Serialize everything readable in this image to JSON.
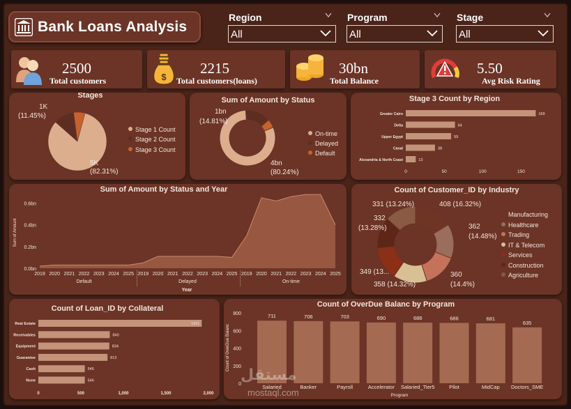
{
  "header": {
    "title": "Bank Loans Analysis"
  },
  "slicers": [
    {
      "label": "Region",
      "value": "All"
    },
    {
      "label": "Program",
      "value": "All"
    },
    {
      "label": "Stage",
      "value": "All"
    }
  ],
  "kpis": [
    {
      "value": "2500",
      "label": "Total customers",
      "icon": "people-icon"
    },
    {
      "value": "2215",
      "label": "Total customers(loans)",
      "icon": "money-bag-icon"
    },
    {
      "value": "30bn",
      "label": "Total Balance",
      "icon": "coins-icon"
    },
    {
      "value": "5.50",
      "label": "Avg Risk Rating",
      "icon": "warning-icon"
    }
  ],
  "stages": {
    "title": "Stages",
    "legend": [
      "Stage 1 Count",
      "Stage 2 Count",
      "Stage 3 Count"
    ],
    "big_label_1": "5K",
    "big_label_2": "(82.31%)",
    "small_label_1": "1K",
    "small_label_2": "(11.45%)"
  },
  "status": {
    "title": "Sum of Amount by Status",
    "legend": [
      "On-time",
      "Delayed",
      "Default"
    ],
    "big_label_1": "4bn",
    "big_label_2": "(80.24%)",
    "small_label_1": "1bn",
    "small_label_2": "(14.81%)"
  },
  "region": {
    "title": "Stage 3 Count by Region",
    "ticks": [
      "0",
      "50",
      "100",
      "150"
    ]
  },
  "area": {
    "title": "Sum of Amount by Status and Year",
    "ylabel": "Sum of Amount",
    "xlabel": "Year",
    "yticks": [
      "0.0bn",
      "0.2bn",
      "0.4bn",
      "0.6bn"
    ]
  },
  "industry": {
    "title": "Count of Customer_ID by Industry",
    "legend": [
      "Manufacturing",
      "Healthcare",
      "Trading",
      "IT & Telecom",
      "Services",
      "Construction",
      "Agriculture"
    ],
    "labels": [
      "331 (13.24%)",
      "408 (16.32%)",
      "332",
      "(13.28%)",
      "362",
      "(14.48%)",
      "349 (13...",
      "358 (14.32%)",
      "360",
      "(14.4%)"
    ]
  },
  "collateral": {
    "title": "Count of Loan_ID by Collateral",
    "ticks": [
      "0",
      "500",
      "1,000",
      "1,500",
      "2,000"
    ]
  },
  "program": {
    "title": "Count of OverDue Balanc by Program",
    "ylabel": "Count of OverDue Balanc",
    "xlabel": "Program",
    "yticks": [
      "0",
      "200",
      "400",
      "600",
      "800"
    ]
  },
  "watermark": {
    "text": "مستقل",
    "sub": "mostaql.com"
  },
  "colors": {
    "bg": "#4a2419",
    "panel": "#6b3426",
    "light": "#d9a47f",
    "mid": "#b56b45",
    "orange": "#c7622c"
  },
  "chart_data": [
    {
      "type": "pie",
      "title": "Stages",
      "categories": [
        "Stage 1 Count",
        "Stage 2 Count",
        "Stage 3 Count"
      ],
      "values": [
        82.31,
        11.45,
        6.24
      ],
      "colors": [
        "#dcae8e",
        "#5c2e22",
        "#c7622c"
      ]
    },
    {
      "type": "pie",
      "title": "Sum of Amount by Status",
      "categories": [
        "On-time",
        "Delayed",
        "Default"
      ],
      "values": [
        80.24,
        14.81,
        4.95
      ],
      "colors": [
        "#dcae8e",
        "#5c2e22",
        "#c7622c"
      ]
    },
    {
      "type": "bar",
      "title": "Stage 3 Count by Region",
      "categories": [
        "Greater Cairo",
        "Delta",
        "Upper Egypt",
        "Canal",
        "Alexandria & North Coast"
      ],
      "values": [
        169,
        64,
        59,
        38,
        13
      ],
      "xlim": [
        0,
        175
      ]
    },
    {
      "type": "area",
      "title": "Sum of Amount by Status and Year",
      "groups": [
        "Default",
        "Delayed",
        "On-time"
      ],
      "x": [
        "2019",
        "2020",
        "2021",
        "2022",
        "2023",
        "2024",
        "2025",
        "2019",
        "2020",
        "2021",
        "2022",
        "2023",
        "2024",
        "2025",
        "2019",
        "2020",
        "2021",
        "2022",
        "2023",
        "2024",
        "2025"
      ],
      "values": [
        0.02,
        0.03,
        0.03,
        0.03,
        0.03,
        0.03,
        0.03,
        0.05,
        0.11,
        0.11,
        0.11,
        0.11,
        0.11,
        0.1,
        0.3,
        0.65,
        0.62,
        0.66,
        0.68,
        0.68,
        0.4
      ],
      "ylim": [
        0,
        0.7
      ]
    },
    {
      "type": "pie",
      "title": "Count of Customer_ID by Industry",
      "categories": [
        "Manufacturing",
        "Healthcare",
        "Trading",
        "IT & Telecom",
        "Services",
        "Construction",
        "Agriculture"
      ],
      "values": [
        408,
        362,
        360,
        358,
        349,
        332,
        331
      ],
      "colors": [
        "#6e3524",
        "#9a6d5c",
        "#c4735a",
        "#d9bf94",
        "#8b2f17",
        "#5e2617",
        "#8a5a44"
      ]
    },
    {
      "type": "bar",
      "title": "Count of Loan_ID by Collateral",
      "categories": [
        "Real Estate",
        "Receivables",
        "Equipment",
        "Guarantee",
        "Cash",
        "None"
      ],
      "values": [
        1921,
        840,
        834,
        813,
        546,
        546
      ],
      "xlim": [
        0,
        2000
      ]
    },
    {
      "type": "bar",
      "title": "Count of OverDue Balanc by Program",
      "categories": [
        "Salaried",
        "Banker",
        "Payroll",
        "Accelerator",
        "Salaried_Tier5",
        "Pilot",
        "MidCap",
        "Doctors_SME"
      ],
      "values": [
        711,
        706,
        703,
        690,
        688,
        686,
        681,
        635
      ],
      "ylim": [
        0,
        800
      ]
    }
  ]
}
